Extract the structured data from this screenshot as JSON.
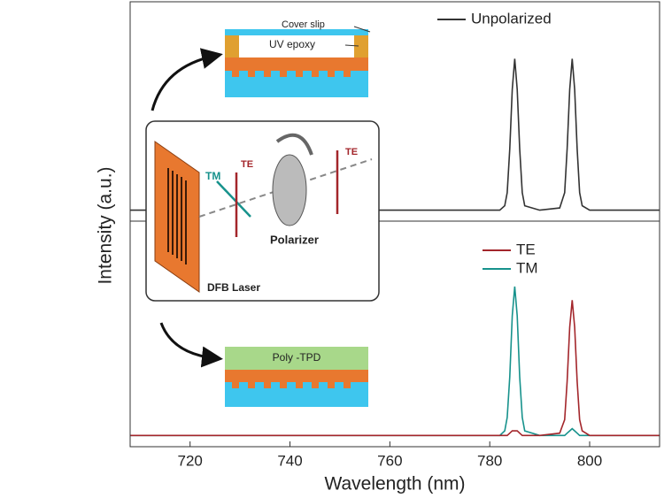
{
  "chart_data": [
    {
      "type": "line",
      "ylabel": "Intensity (a.u.)",
      "x": [
        708,
        720,
        740,
        760,
        775,
        780,
        782,
        783,
        783.5,
        784,
        784.5,
        785,
        785.5,
        786,
        786.5,
        787,
        790,
        794,
        795,
        795.5,
        796,
        796.5,
        797,
        797.5,
        798,
        798.5,
        800,
        805,
        814
      ],
      "series": [
        {
          "name": "Unpolarized",
          "color": "#333333",
          "values": [
            0.05,
            0.05,
            0.05,
            0.05,
            0.05,
            0.05,
            0.05,
            0.07,
            0.13,
            0.33,
            0.6,
            0.74,
            0.6,
            0.33,
            0.13,
            0.07,
            0.05,
            0.06,
            0.13,
            0.33,
            0.6,
            0.74,
            0.6,
            0.33,
            0.13,
            0.07,
            0.05,
            0.05,
            0.05
          ]
        }
      ],
      "xlim": [
        708,
        814
      ],
      "ylim": [
        0,
        1
      ],
      "legend": "upper right"
    },
    {
      "type": "line",
      "xlabel": "Wavelength (nm)",
      "x": [
        708,
        720,
        740,
        760,
        775,
        780,
        782,
        783,
        783.5,
        784,
        784.5,
        785,
        785.5,
        786,
        786.5,
        787,
        790,
        794,
        795,
        795.5,
        796,
        796.5,
        797,
        797.5,
        798,
        798.5,
        800,
        805,
        814
      ],
      "series": [
        {
          "name": "TE",
          "color": "#a3262b",
          "values": [
            0.05,
            0.05,
            0.05,
            0.05,
            0.05,
            0.05,
            0.05,
            0.05,
            0.05,
            0.06,
            0.07,
            0.07,
            0.07,
            0.06,
            0.05,
            0.05,
            0.05,
            0.06,
            0.12,
            0.29,
            0.53,
            0.65,
            0.53,
            0.29,
            0.12,
            0.07,
            0.05,
            0.05,
            0.05
          ]
        },
        {
          "name": "TM",
          "color": "#17928c",
          "values": [
            0.05,
            0.05,
            0.05,
            0.05,
            0.05,
            0.05,
            0.05,
            0.07,
            0.13,
            0.31,
            0.58,
            0.71,
            0.58,
            0.31,
            0.13,
            0.07,
            0.05,
            0.05,
            0.05,
            0.06,
            0.07,
            0.08,
            0.07,
            0.06,
            0.05,
            0.05,
            0.05,
            0.05,
            0.05
          ]
        }
      ],
      "xlim": [
        708,
        814
      ],
      "ylim": [
        0,
        1
      ],
      "xticks": [
        720,
        740,
        760,
        780,
        800
      ],
      "legend": "upper right"
    }
  ],
  "insets": {
    "encapsulated": {
      "cover": "Cover slip",
      "epoxy": "UV epoxy"
    },
    "setup": {
      "tm": "TM",
      "te1": "TE",
      "te2": "TE",
      "polarizer": "Polarizer",
      "laser": "DFB Laser"
    },
    "bare": {
      "layer": "Poly -TPD"
    }
  }
}
